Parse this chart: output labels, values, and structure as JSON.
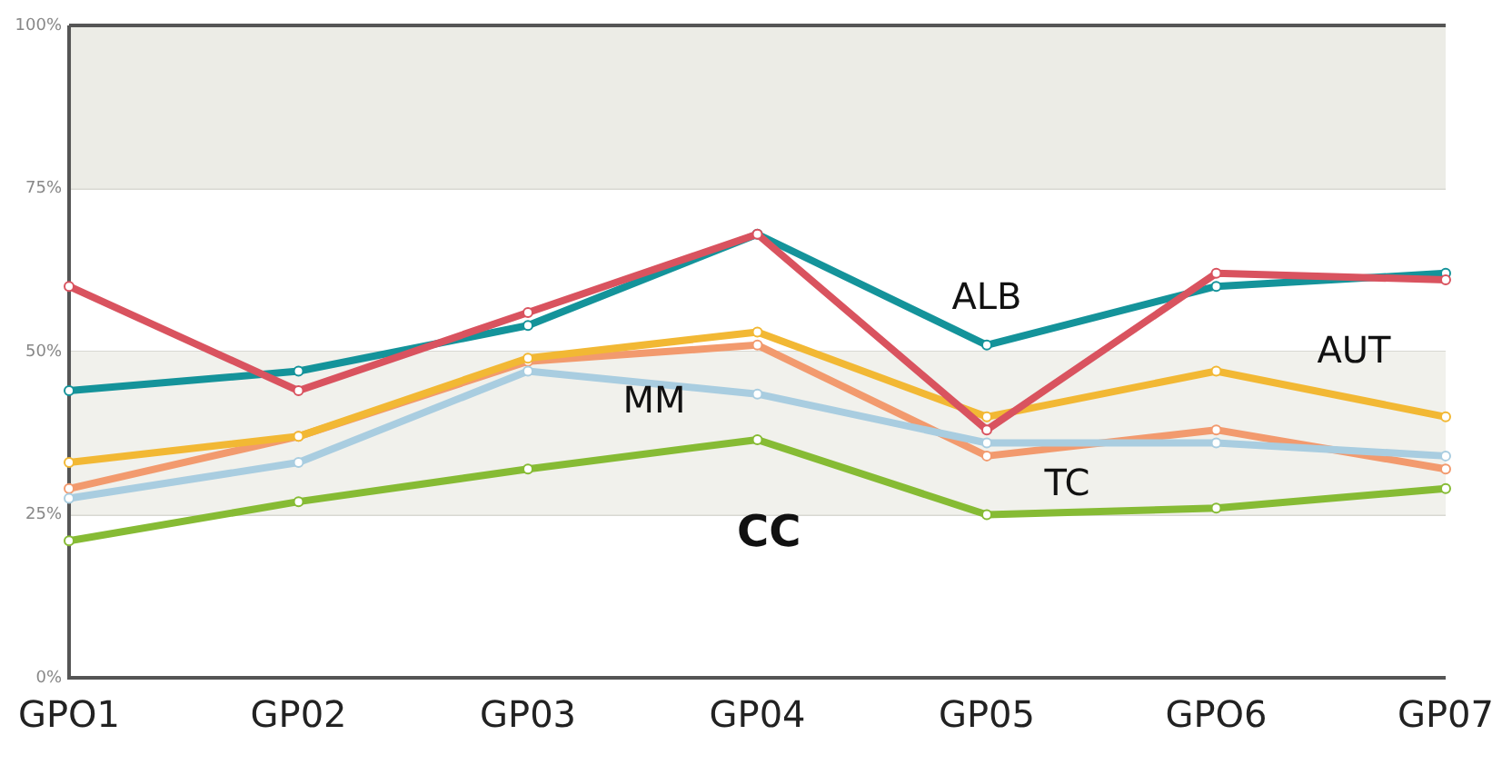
{
  "chart_data": {
    "type": "line",
    "categories": [
      "GPO1",
      "GP02",
      "GP03",
      "GP04",
      "GP05",
      "GPO6",
      "GP07"
    ],
    "ylim": [
      0,
      100
    ],
    "yticks": [
      {
        "value": 0,
        "label": "0%"
      },
      {
        "value": 25,
        "label": "25%"
      },
      {
        "value": 50,
        "label": "50%"
      },
      {
        "value": 75,
        "label": "75%"
      },
      {
        "value": 100,
        "label": "100%"
      }
    ],
    "grid": "y",
    "marker": "circle",
    "line_style": "solid",
    "bands": [
      {
        "axis": "y",
        "from": 75,
        "to": 100,
        "color": "#ecece6"
      },
      {
        "axis": "y",
        "from": 25,
        "to": 50,
        "color": "#f1f1ec"
      }
    ],
    "series": [
      {
        "color": "#d9535f",
        "values": [
          60,
          44,
          56,
          68,
          38,
          62,
          61
        ]
      },
      {
        "name": "ALB",
        "color": "#14939a",
        "values": [
          44,
          47,
          54,
          68,
          51,
          60,
          62
        ]
      },
      {
        "name": "MM",
        "color": "#a9cde0",
        "values": [
          27.5,
          33,
          47,
          43.5,
          36,
          36,
          34
        ]
      },
      {
        "name": "AUT",
        "color": "#f2b834",
        "values": [
          33,
          37,
          49,
          53,
          40,
          47,
          40
        ]
      },
      {
        "name": "TC",
        "color": "#f29a6e",
        "values": [
          29,
          37,
          48.5,
          51,
          34,
          38,
          32
        ]
      },
      {
        "name": "CC",
        "color": "#86bb34",
        "values": [
          21,
          27,
          32,
          36.5,
          25,
          26,
          29
        ]
      }
    ]
  }
}
